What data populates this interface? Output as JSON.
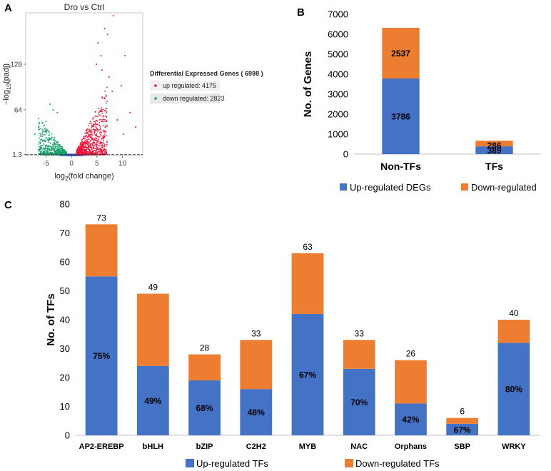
{
  "panels": {
    "a": "A",
    "b": "B",
    "c": "C"
  },
  "colors": {
    "blue": "#4472C4",
    "orange": "#ED7D31",
    "volcano_up": "#E8173A",
    "volcano_down": "#1A9E6B",
    "volcano_ns": "#3A50C8"
  },
  "chart_data": [
    {
      "type": "scatter",
      "title": "Dro vs Ctrl",
      "xlabel": "log2(fold change)",
      "ylabel": "-log10(padj)",
      "x_ticks": [
        "-5",
        "0",
        "5",
        "10"
      ],
      "y_ticks": [
        "1.3",
        "64",
        "128"
      ],
      "xlim": [
        -9,
        14
      ],
      "ylim": [
        0,
        200
      ],
      "threshold_padj": 1.3,
      "legend": {
        "title": "Differential Expressed Genes ( 6998 )",
        "entries": [
          {
            "name": "up regulated: 4175",
            "color": "#E8173A"
          },
          {
            "name": "down regulated: 2823",
            "color": "#1A9E6B"
          }
        ]
      }
    },
    {
      "type": "bar",
      "stacked": true,
      "categories": [
        "Non-TFs",
        "TFs"
      ],
      "series": [
        {
          "name": "Up-regulated DEGs",
          "values": [
            3786,
            389
          ],
          "labels": [
            "3786",
            "389"
          ],
          "color": "#4472C4"
        },
        {
          "name": "Down-regulated",
          "values": [
            2537,
            286
          ],
          "labels": [
            "2537",
            "286"
          ],
          "color": "#ED7D31"
        }
      ],
      "ylabel": "No. of Genes",
      "ylim": [
        0,
        7000
      ],
      "y_ticks": [
        "0",
        "1000",
        "2000",
        "3000",
        "4000",
        "5000",
        "6000",
        "7000"
      ]
    },
    {
      "type": "bar",
      "stacked": true,
      "categories": [
        "AP2-EREBP",
        "bHLH",
        "bZIP",
        "C2H2",
        "MYB",
        "NAC",
        "Orphans",
        "SBP",
        "WRKY"
      ],
      "series": [
        {
          "name": "Up-regulated TFs",
          "values": [
            55,
            24,
            19,
            16,
            42,
            23,
            11,
            4,
            32
          ],
          "labels": [
            "75%",
            "49%",
            "68%",
            "48%",
            "67%",
            "70%",
            "42%",
            "67%",
            "80%"
          ],
          "color": "#4472C4"
        },
        {
          "name": "Down-regulated TFs",
          "values": [
            18,
            25,
            9,
            17,
            21,
            10,
            15,
            2,
            8
          ],
          "color": "#ED7D31"
        }
      ],
      "totals": [
        "73",
        "49",
        "28",
        "33",
        "63",
        "33",
        "26",
        "6",
        "40"
      ],
      "ylabel": "No. of TFs",
      "ylim": [
        0,
        80
      ],
      "y_ticks": [
        "0",
        "10",
        "20",
        "30",
        "40",
        "50",
        "60",
        "70",
        "80"
      ]
    }
  ]
}
